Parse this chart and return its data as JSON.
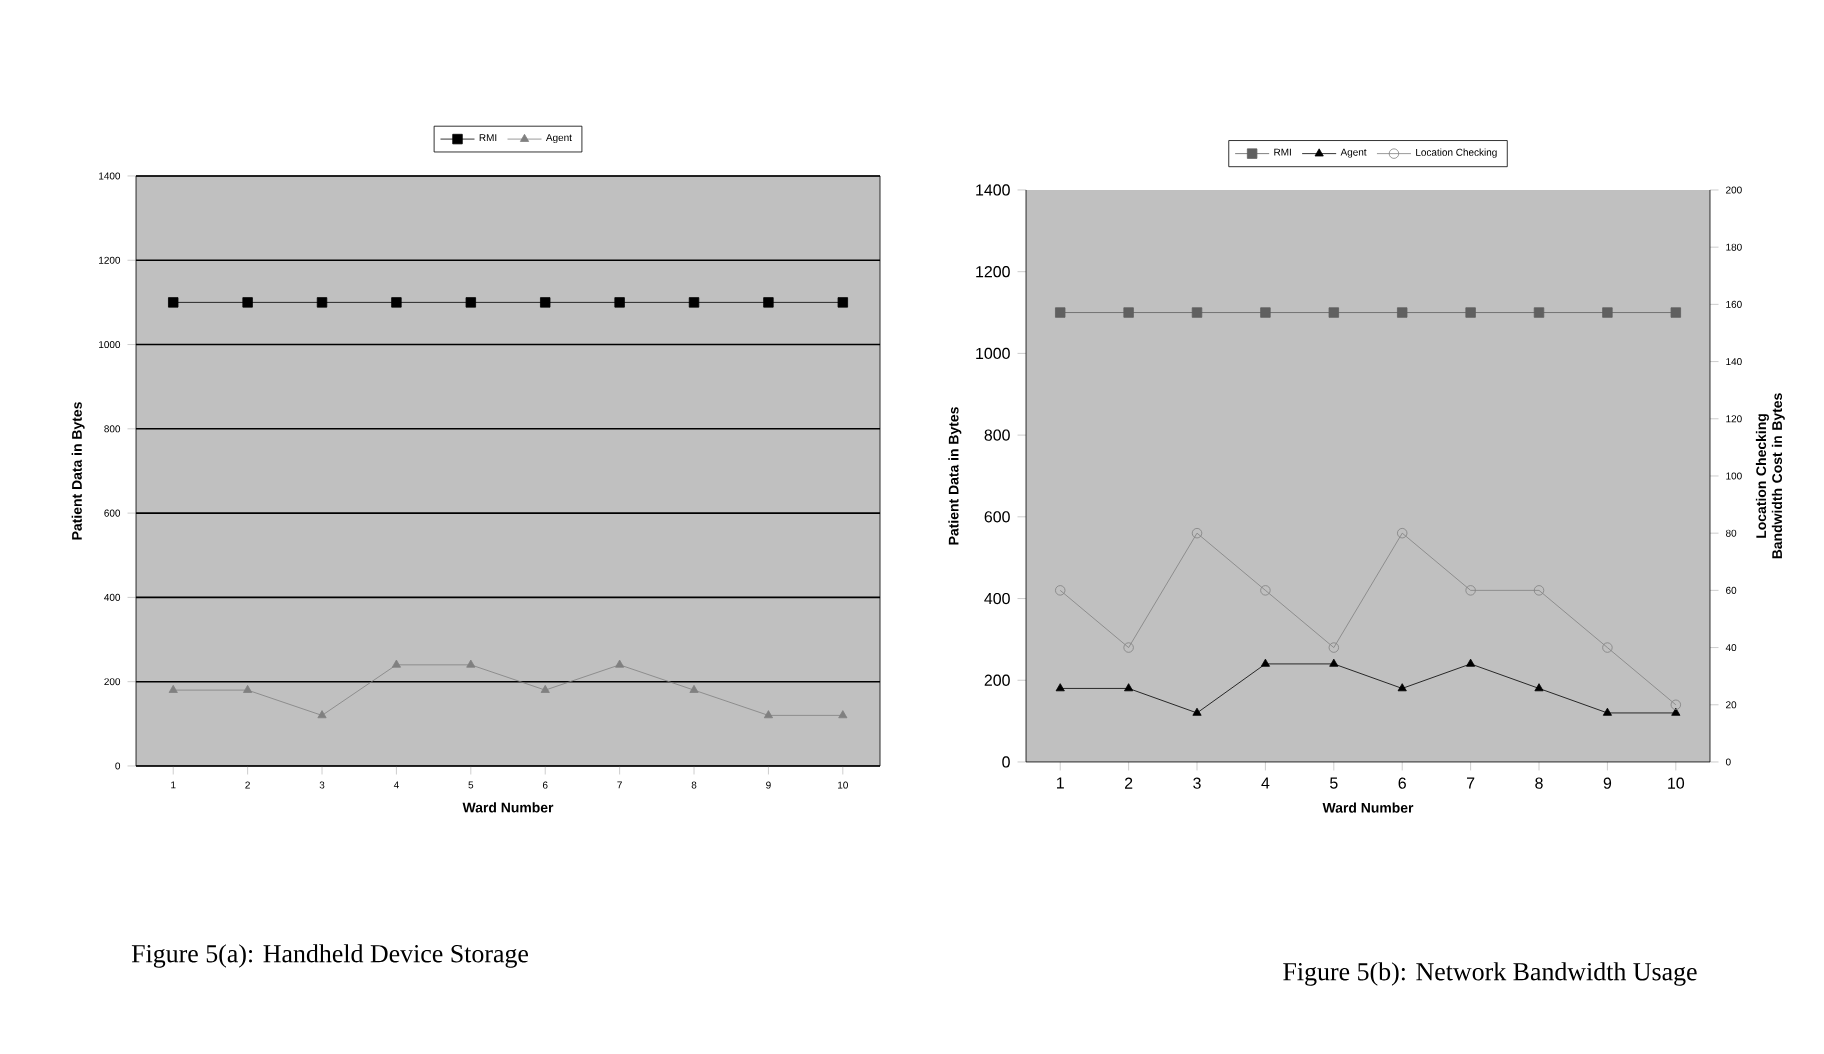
{
  "chart_data": [
    {
      "type": "line",
      "categories": [
        "1",
        "2",
        "3",
        "4",
        "5",
        "6",
        "7",
        "8",
        "9",
        "10"
      ],
      "xlabel": "Ward Number",
      "ylabel": "Patient Data in Bytes",
      "ylim": [
        0,
        1400
      ],
      "yticks": [
        0,
        200,
        400,
        600,
        800,
        1000,
        1200,
        1400
      ],
      "grid": "y",
      "legend": "top",
      "line_style": "solid",
      "annotations": [
        "Figure 5(a): Handheld Device Storage"
      ],
      "series": [
        {
          "name": "RMI",
          "color": "#000000",
          "marker": "square",
          "values": [
            1100,
            1100,
            1100,
            1100,
            1100,
            1100,
            1100,
            1100,
            1100,
            1100
          ]
        },
        {
          "name": "Agent",
          "color": "#808080",
          "marker": "triangle",
          "values": [
            180,
            180,
            120,
            240,
            240,
            180,
            240,
            180,
            120,
            120
          ]
        }
      ]
    },
    {
      "type": "line",
      "categories": [
        "1",
        "2",
        "3",
        "4",
        "5",
        "6",
        "7",
        "8",
        "9",
        "10"
      ],
      "xlabel": "Ward Number",
      "ylabel": "Patient Data in Bytes",
      "y2label": "Location Checking Bandwidth Cost in Bytes",
      "ylim": [
        0,
        1400
      ],
      "yticks": [
        0,
        200,
        400,
        600,
        800,
        1000,
        1200,
        1400
      ],
      "y2lim": [
        0,
        200
      ],
      "y2ticks": [
        0,
        20,
        40,
        60,
        80,
        100,
        120,
        140,
        160,
        180,
        200
      ],
      "legend": "top",
      "line_style": "solid",
      "annotations": [
        "Figure 5(b): Network Bandwidth Usage"
      ],
      "series": [
        {
          "name": "RMI",
          "color": "#606060",
          "marker": "square",
          "values": [
            1100,
            1100,
            1100,
            1100,
            1100,
            1100,
            1100,
            1100,
            1100,
            1100
          ]
        },
        {
          "name": "Agent",
          "color": "#000000",
          "marker": "triangle",
          "values": [
            180,
            180,
            120,
            240,
            240,
            180,
            240,
            180,
            120,
            120
          ]
        },
        {
          "name": "Location Checking",
          "color": "#808080",
          "marker": "circle",
          "axis": "y2",
          "values": [
            60,
            40,
            80,
            60,
            40,
            80,
            60,
            60,
            40,
            20
          ]
        }
      ]
    }
  ]
}
